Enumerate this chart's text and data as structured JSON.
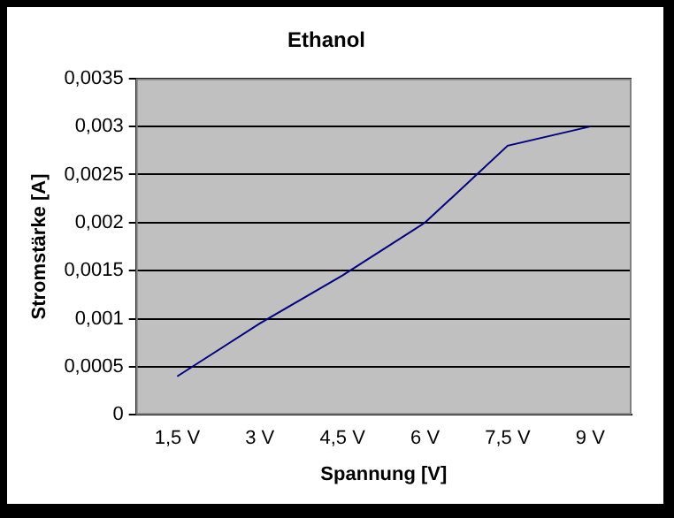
{
  "chart_data": {
    "type": "line",
    "title": "Ethanol",
    "xlabel": "Spannung [V]",
    "ylabel": "Stromstärke [A]",
    "categories": [
      "1,5 V",
      "3 V",
      "4,5 V",
      "6 V",
      "7,5 V",
      "9 V"
    ],
    "series": [
      {
        "color": "#000080",
        "values": [
          0.0004,
          0.00095,
          0.00145,
          0.002,
          0.0028,
          0.003
        ]
      }
    ],
    "ylim": [
      0,
      0.0035
    ],
    "yticks": [
      {
        "value": 0,
        "label": "0"
      },
      {
        "value": 0.0005,
        "label": "0,0005"
      },
      {
        "value": 0.001,
        "label": "0,001"
      },
      {
        "value": 0.0015,
        "label": "0,0015"
      },
      {
        "value": 0.002,
        "label": "0,002"
      },
      {
        "value": 0.0025,
        "label": "0,0025"
      },
      {
        "value": 0.003,
        "label": "0,003"
      },
      {
        "value": 0.0035,
        "label": "0,0035"
      }
    ],
    "grid": "y",
    "legend": false,
    "marker": "none",
    "line_style": "solid"
  }
}
